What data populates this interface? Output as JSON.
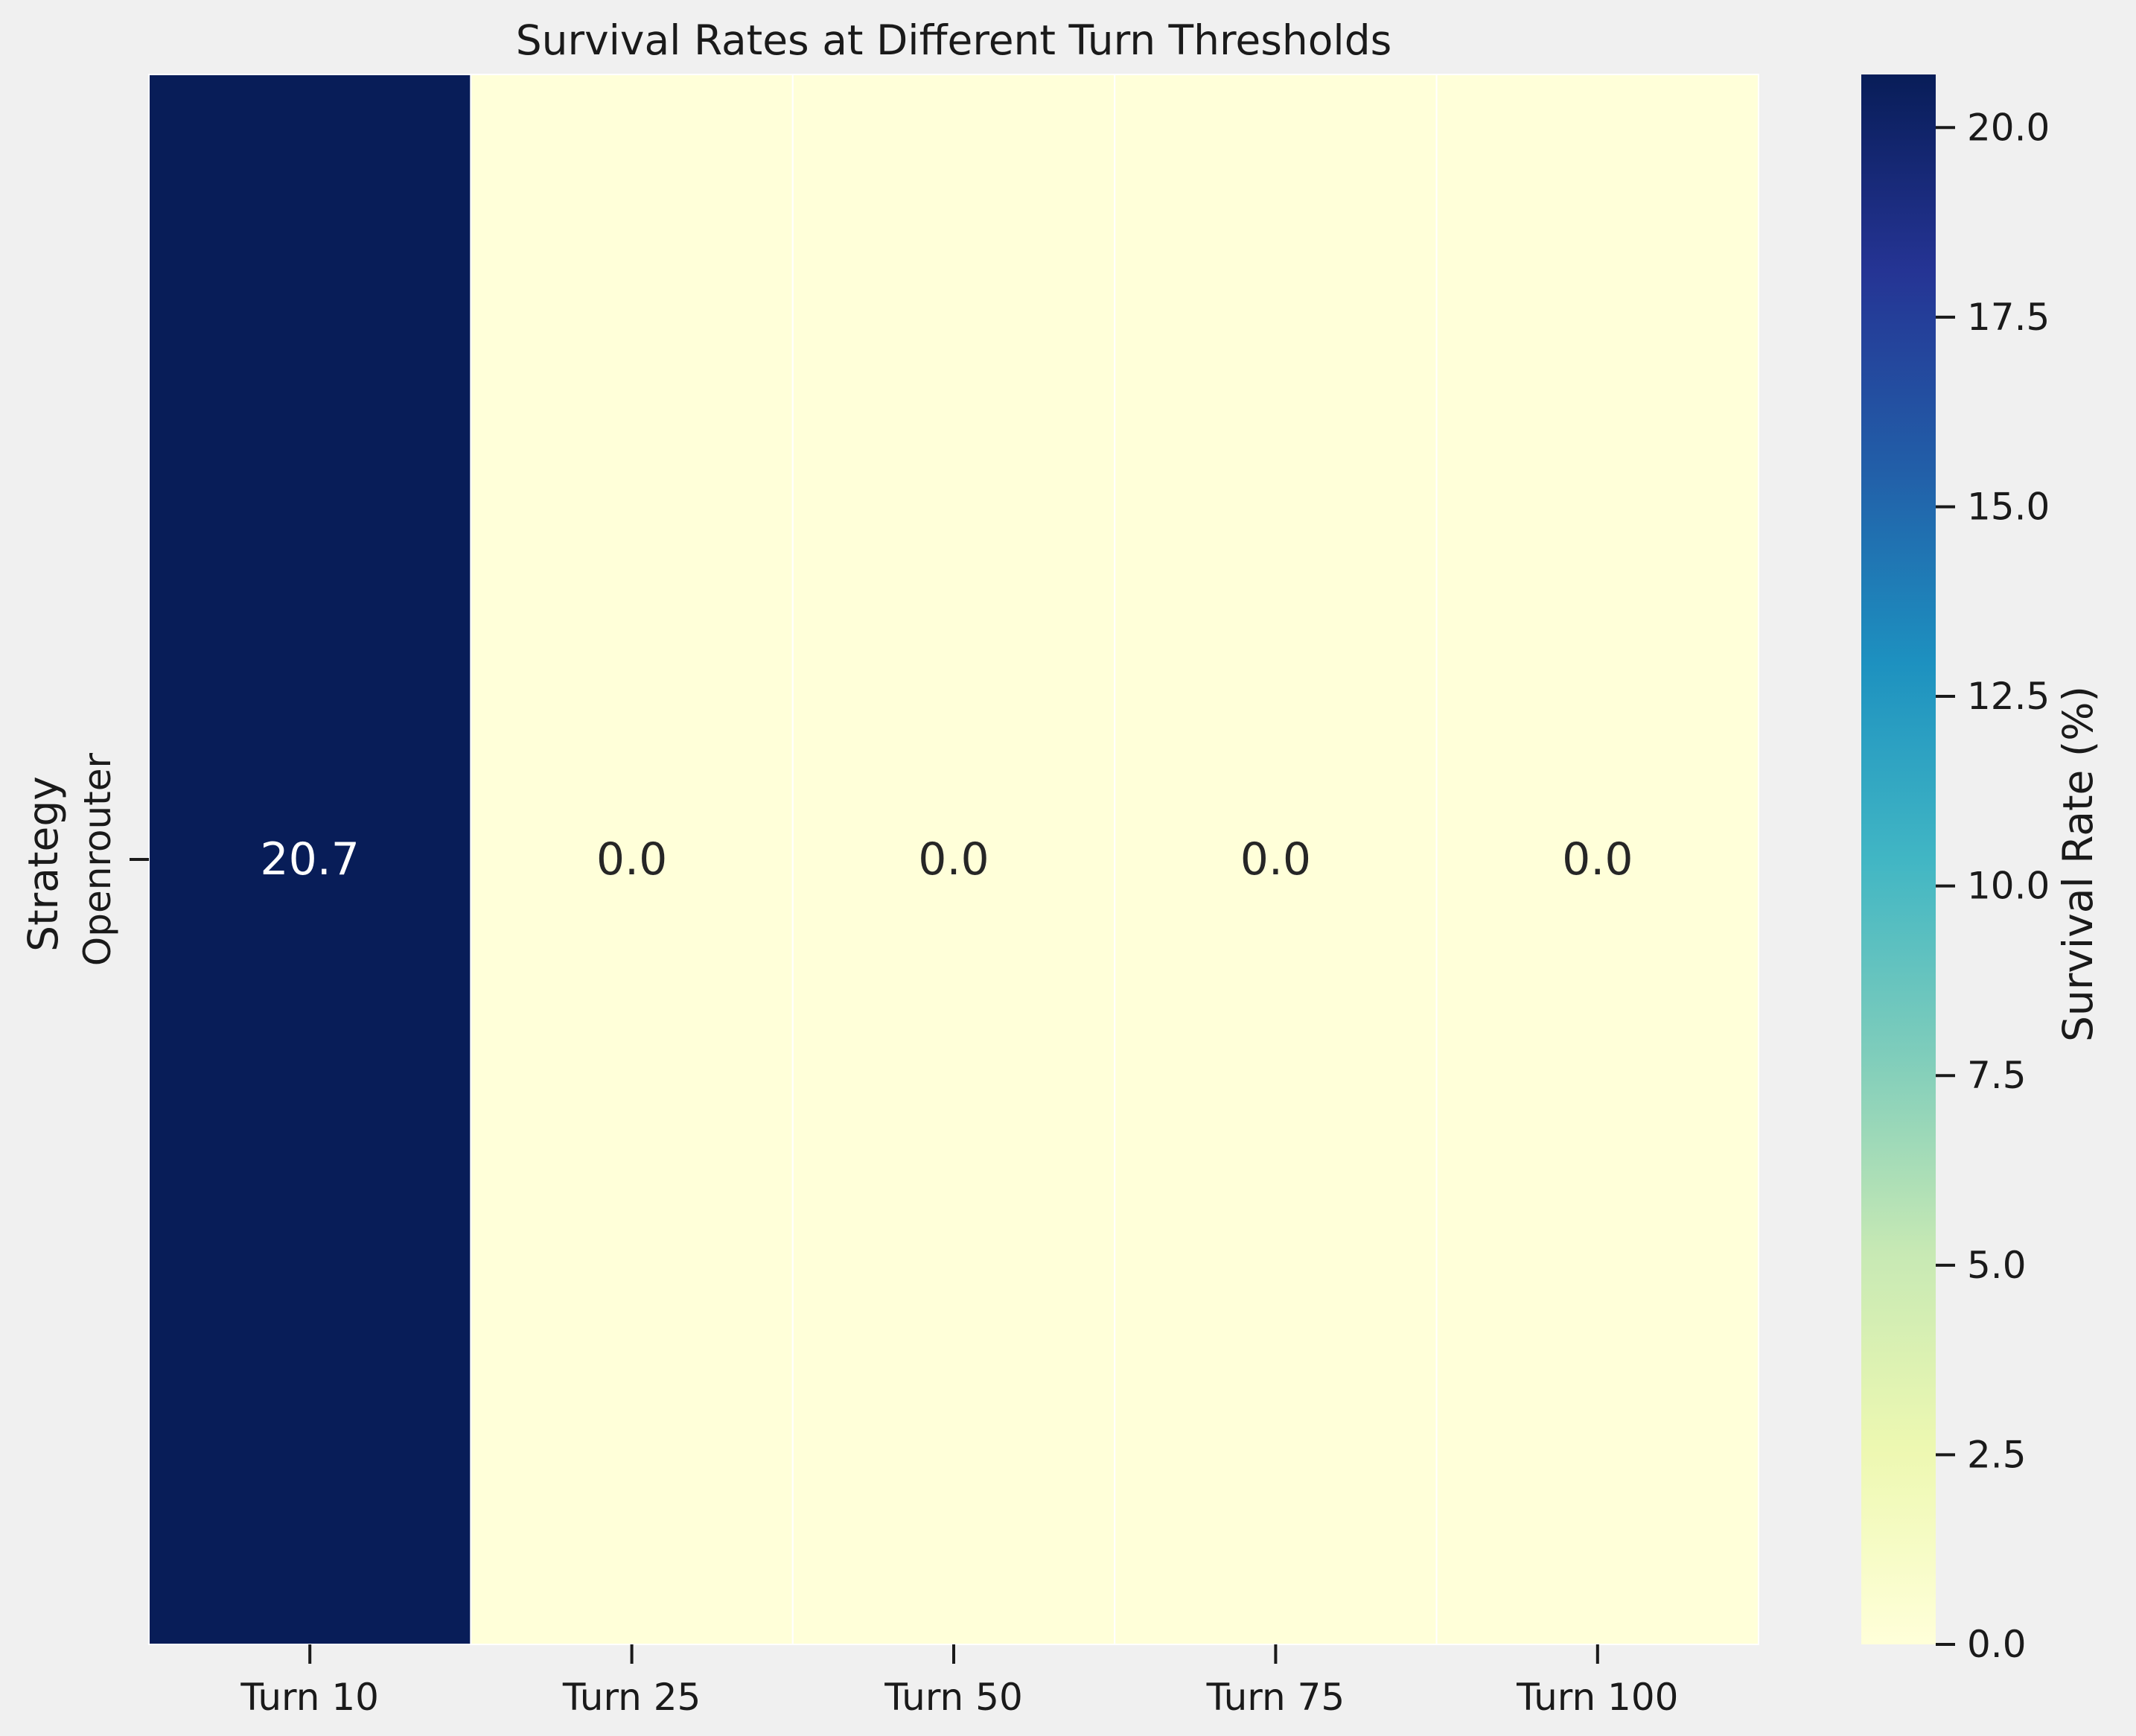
{
  "chart_data": {
    "type": "heatmap",
    "title": "Survival Rates at Different Turn Thresholds",
    "xlabel": "",
    "ylabel": "Strategy",
    "x_categories": [
      "Turn 10",
      "Turn 25",
      "Turn 50",
      "Turn 75",
      "Turn 100"
    ],
    "y_categories": [
      "Openrouter"
    ],
    "values": [
      [
        20.7,
        0.0,
        0.0,
        0.0,
        0.0
      ]
    ],
    "annotations": [
      [
        "20.7",
        "0.0",
        "0.0",
        "0.0",
        "0.0"
      ]
    ],
    "colormap": "YlGnBu",
    "vmin": 0.0,
    "vmax": 20.7,
    "colorbar": {
      "label": "Survival Rate (%)",
      "ticks": [
        0.0,
        2.5,
        5.0,
        7.5,
        10.0,
        12.5,
        15.0,
        17.5,
        20.0
      ],
      "tick_labels": [
        "0.0",
        "2.5",
        "5.0",
        "7.5",
        "10.0",
        "12.5",
        "15.0",
        "17.5",
        "20.0"
      ]
    },
    "colors": {
      "background": "#f0f0f0",
      "cell_border": "#ffffff",
      "text_dark": "#262626",
      "text_light": "#ffffff"
    }
  }
}
